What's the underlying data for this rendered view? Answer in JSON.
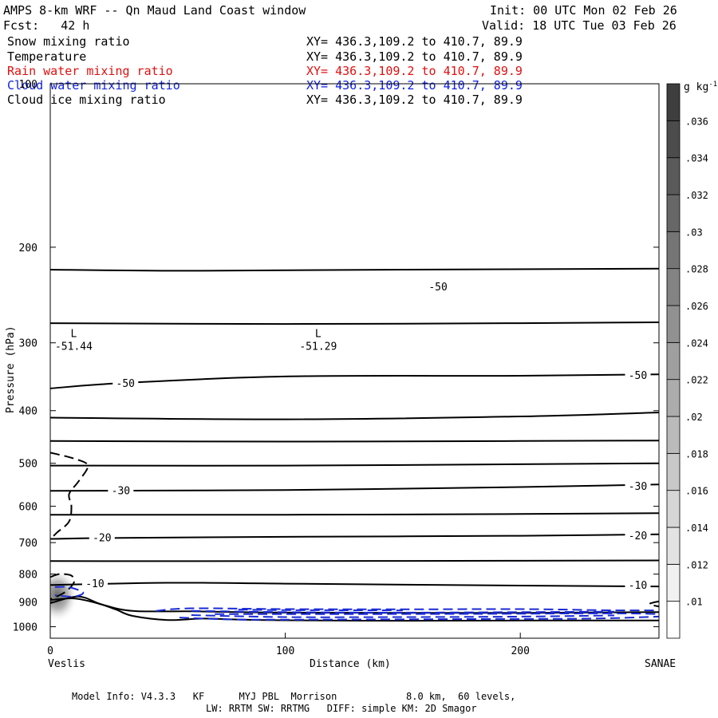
{
  "header": {
    "title": "AMPS 8-km WRF -- Qn Maud Land Coast window",
    "fcst": "Fcst:   42 h",
    "init": "Init: 00 UTC Mon 02 Feb 26",
    "valid": "Valid: 18 UTC Tue 03 Feb 26"
  },
  "fields": [
    {
      "name": "Snow mixing ratio",
      "xy": "XY= 436.3,109.2 to 410.7, 89.9",
      "color": "#000000"
    },
    {
      "name": "Temperature",
      "xy": "XY= 436.3,109.2 to 410.7, 89.9",
      "color": "#000000"
    },
    {
      "name": "Rain water mixing ratio",
      "xy": "XY= 436.3,109.2 to 410.7, 89.9",
      "color": "#e01010"
    },
    {
      "name": "Cloud water mixing ratio",
      "xy": "XY= 436.3,109.2 to 410.7, 89.9",
      "color": "#1020e0"
    },
    {
      "name": "Cloud ice mixing ratio",
      "xy": "XY= 436.3,109.2 to 410.7, 89.9",
      "color": "#000000"
    }
  ],
  "footer": {
    "line1": "Model Info: V4.3.3   KF      MYJ PBL  Morrison            8.0 km,  60 levels,",
    "line2": "LW: RRTM SW: RRTMG   DIFF: simple KM: 2D Smagor"
  },
  "chart_data": {
    "type": "contour",
    "xlabel": "Distance (km)",
    "ylabel": "Pressure (hPa)",
    "xlim": [
      0,
      259
    ],
    "ylim": [
      1050,
      100
    ],
    "y_scale": "log",
    "x_ticks": [
      0,
      100,
      200
    ],
    "y_ticks": [
      100,
      200,
      300,
      400,
      500,
      600,
      700,
      800,
      900,
      1000
    ],
    "x_end_labels": {
      "left": "Veslis",
      "right": "SANAE"
    },
    "colorbar": {
      "units_label": "g kg",
      "units_exp": "-1",
      "ticks": [
        ".01",
        ".012",
        ".014",
        ".016",
        ".018",
        ".02",
        ".022",
        ".024",
        ".026",
        ".028",
        ".03",
        ".032",
        ".034",
        ".036"
      ]
    },
    "temperature_labels": [
      {
        "text": "-50",
        "x": 165,
        "p": 237
      },
      {
        "text": "-50",
        "x": 32,
        "p": 357
      },
      {
        "text": "-50",
        "x": 250,
        "p": 345
      },
      {
        "text": "-30",
        "x": 30,
        "p": 562
      },
      {
        "text": "-30",
        "x": 250,
        "p": 552
      },
      {
        "text": "-20",
        "x": 22,
        "p": 687
      },
      {
        "text": "-20",
        "x": 250,
        "p": 681
      },
      {
        "text": "-10",
        "x": 19,
        "p": 834
      },
      {
        "text": "-10",
        "x": 250,
        "p": 840
      }
    ],
    "lows": [
      {
        "label": "L",
        "value": "-51.44",
        "x": 10,
        "p": 305
      },
      {
        "label": "L",
        "value": "-51.29",
        "x": 114,
        "p": 305
      }
    ],
    "temperature_isotherms": [
      {
        "points": [
          [
            0,
            220
          ],
          [
            60,
            221
          ],
          [
            150,
            220
          ],
          [
            259,
            219
          ]
        ]
      },
      {
        "points": [
          [
            0,
            276
          ],
          [
            100,
            277
          ],
          [
            200,
            276
          ],
          [
            259,
            275
          ]
        ]
      },
      {
        "points": [
          [
            0,
            364
          ],
          [
            30,
            356
          ],
          [
            100,
            346
          ],
          [
            200,
            345
          ],
          [
            259,
            343
          ]
        ]
      },
      {
        "points": [
          [
            0,
            412
          ],
          [
            100,
            415
          ],
          [
            200,
            410
          ],
          [
            259,
            403
          ]
        ]
      },
      {
        "points": [
          [
            0,
            455
          ],
          [
            100,
            456
          ],
          [
            200,
            455
          ],
          [
            259,
            454
          ]
        ]
      },
      {
        "points": [
          [
            0,
            505
          ],
          [
            100,
            505
          ],
          [
            200,
            502
          ],
          [
            259,
            500
          ]
        ]
      },
      {
        "points": [
          [
            0,
            562
          ],
          [
            100,
            560
          ],
          [
            200,
            553
          ],
          [
            259,
            547
          ]
        ]
      },
      {
        "points": [
          [
            0,
            622
          ],
          [
            100,
            622
          ],
          [
            200,
            620
          ],
          [
            259,
            618
          ]
        ]
      },
      {
        "points": [
          [
            0,
            689
          ],
          [
            30,
            686
          ],
          [
            100,
            683
          ],
          [
            200,
            680
          ],
          [
            259,
            676
          ]
        ]
      },
      {
        "points": [
          [
            0,
            757
          ],
          [
            100,
            757
          ],
          [
            200,
            756
          ],
          [
            259,
            755
          ]
        ]
      },
      {
        "points": [
          [
            0,
            838
          ],
          [
            50,
            830
          ],
          [
            100,
            833
          ],
          [
            200,
            840
          ],
          [
            259,
            843
          ]
        ]
      },
      {
        "points": [
          [
            0,
            905
          ],
          [
            12,
            880
          ],
          [
            22,
            910
          ],
          [
            35,
            935
          ],
          [
            60,
            937
          ],
          [
            100,
            942
          ],
          [
            200,
            943
          ],
          [
            259,
            940
          ]
        ]
      }
    ],
    "terrain": {
      "points": [
        [
          0,
          893
        ],
        [
          10,
          887
        ],
        [
          20,
          905
        ],
        [
          28,
          930
        ],
        [
          35,
          955
        ],
        [
          50,
          972
        ],
        [
          65,
          966
        ],
        [
          80,
          970
        ],
        [
          100,
          973
        ],
        [
          150,
          975
        ],
        [
          200,
          974
        ],
        [
          259,
          974
        ]
      ]
    },
    "cloud_ice_dashed": [
      {
        "points": [
          [
            0,
            478
          ],
          [
            10,
            490
          ],
          [
            16,
            505
          ],
          [
            12,
            540
          ],
          [
            8,
            570
          ],
          [
            9,
            600
          ],
          [
            8,
            640
          ],
          [
            3,
            670
          ],
          [
            0,
            690
          ]
        ]
      },
      {
        "points": [
          [
            0,
            810
          ],
          [
            4,
            800
          ],
          [
            9,
            805
          ],
          [
            10,
            830
          ],
          [
            6,
            865
          ],
          [
            0,
            890
          ]
        ]
      },
      {
        "points": [
          [
            259,
            898
          ],
          [
            255,
            908
          ],
          [
            259,
            918
          ]
        ]
      }
    ],
    "cloud_water_dashed": [
      {
        "points": [
          [
            2,
            845
          ],
          [
            8,
            846
          ],
          [
            14,
            865
          ],
          [
            10,
            880
          ],
          [
            2,
            875
          ]
        ]
      },
      {
        "points": [
          [
            45,
            935
          ],
          [
            60,
            925
          ],
          [
            100,
            928
          ],
          [
            150,
            929
          ],
          [
            200,
            928
          ],
          [
            240,
            933
          ],
          [
            259,
            933
          ]
        ]
      },
      {
        "points": [
          [
            60,
            935
          ],
          [
            100,
            940
          ],
          [
            150,
            942
          ],
          [
            200,
            940
          ],
          [
            240,
            938
          ]
        ]
      },
      {
        "points": [
          [
            70,
            948
          ],
          [
            120,
            948
          ],
          [
            180,
            947
          ],
          [
            240,
            945
          ],
          [
            259,
            948
          ]
        ]
      },
      {
        "points": [
          [
            60,
            952
          ],
          [
            100,
            960
          ],
          [
            150,
            960
          ],
          [
            200,
            958
          ],
          [
            240,
            953
          ]
        ]
      },
      {
        "points": [
          [
            55,
            962
          ],
          [
            80,
            970
          ],
          [
            120,
            970
          ],
          [
            180,
            968
          ],
          [
            230,
            966
          ],
          [
            259,
            958
          ]
        ]
      },
      {
        "points": [
          [
            80,
            930
          ],
          [
            100,
            932
          ],
          [
            150,
            933
          ]
        ]
      }
    ],
    "snow_shading": {
      "x": 3,
      "p": 875,
      "max": 0.03
    }
  }
}
